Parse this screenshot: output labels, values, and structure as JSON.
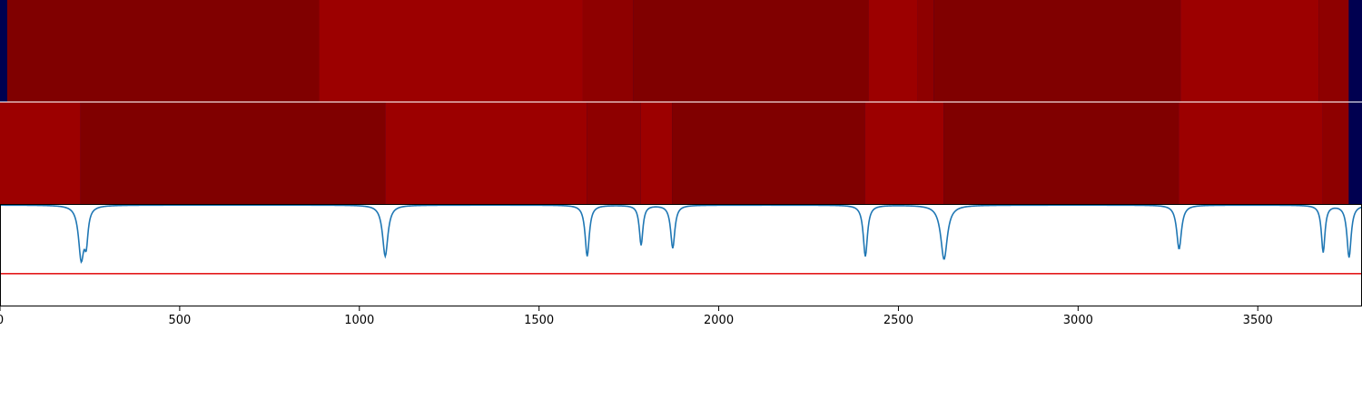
{
  "colors": {
    "background": "#000050",
    "dark_red": "#800000",
    "mid_red": "#8e0000",
    "bright_red": "#9c0000",
    "signal_line": "#1f77b4",
    "threshold_line": "#e31a1c",
    "axis": "#000000"
  },
  "chart_data": {
    "type": "heatmap",
    "title": "",
    "xlabel": "",
    "ylabel": "",
    "xlim": [
      0,
      3790
    ],
    "xticks": [
      0,
      500,
      1000,
      1500,
      2000,
      2500,
      3000,
      3500
    ],
    "xtick_labels": [
      "0",
      "500",
      "1000",
      "1500",
      "2000",
      "2500",
      "3000",
      "3500"
    ],
    "grid": false,
    "legend": "none",
    "rows": [
      {
        "segments": [
          {
            "start": 20,
            "end": 888,
            "level": 0
          },
          {
            "start": 888,
            "end": 1622,
            "level": 2
          },
          {
            "start": 1622,
            "end": 1762,
            "level": 1
          },
          {
            "start": 1762,
            "end": 2417,
            "level": 0
          },
          {
            "start": 2417,
            "end": 2553,
            "level": 2
          },
          {
            "start": 2553,
            "end": 2598,
            "level": 1
          },
          {
            "start": 2598,
            "end": 3285,
            "level": 0
          },
          {
            "start": 3285,
            "end": 3669,
            "level": 2
          },
          {
            "start": 3669,
            "end": 3753,
            "level": 1
          }
        ]
      },
      {
        "segments": [
          {
            "start": 0,
            "end": 224,
            "level": 2
          },
          {
            "start": 224,
            "end": 1072,
            "level": 0
          },
          {
            "start": 1072,
            "end": 1633,
            "level": 2
          },
          {
            "start": 1633,
            "end": 1783,
            "level": 1
          },
          {
            "start": 1783,
            "end": 1870,
            "level": 2
          },
          {
            "start": 1870,
            "end": 2407,
            "level": 0
          },
          {
            "start": 2407,
            "end": 2626,
            "level": 2
          },
          {
            "start": 2626,
            "end": 3280,
            "level": 0
          },
          {
            "start": 3280,
            "end": 3681,
            "level": 2
          },
          {
            "start": 3681,
            "end": 3753,
            "level": 1
          }
        ]
      }
    ],
    "signal": {
      "ylim": [
        0,
        1
      ],
      "baseline": 0.99,
      "threshold": 0.32,
      "dips": [
        {
          "x": 226,
          "depth": 0.51,
          "width": 9
        },
        {
          "x": 240,
          "depth": 0.3,
          "width": 6
        },
        {
          "x": 1072,
          "depth": 0.5,
          "width": 9
        },
        {
          "x": 1634,
          "depth": 0.5,
          "width": 7
        },
        {
          "x": 1784,
          "depth": 0.39,
          "width": 6
        },
        {
          "x": 1872,
          "depth": 0.42,
          "width": 7
        },
        {
          "x": 2408,
          "depth": 0.5,
          "width": 7
        },
        {
          "x": 2627,
          "depth": 0.53,
          "width": 11
        },
        {
          "x": 3281,
          "depth": 0.43,
          "width": 8
        },
        {
          "x": 3682,
          "depth": 0.46,
          "width": 6
        },
        {
          "x": 3754,
          "depth": 0.51,
          "width": 7
        }
      ]
    }
  }
}
